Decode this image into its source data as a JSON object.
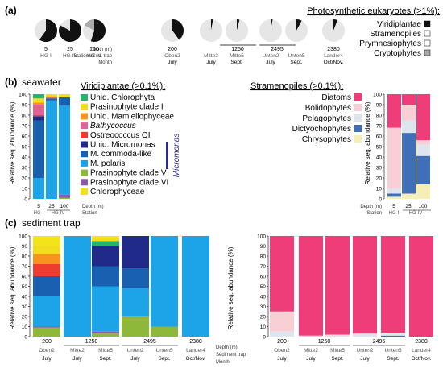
{
  "figure": {
    "panel_a": {
      "label": "(a)",
      "legend_title": "Photosynthetic eukaryotes (>1%):",
      "legend": [
        {
          "name": "Viridiplantae",
          "color": "#111111"
        },
        {
          "name": "Stramenopiles",
          "color": "#ffffff"
        },
        {
          "name": "Prymnesiophytes",
          "color": "#ffffff"
        },
        {
          "name": "Cryptophytes",
          "color": "#aaaaaa"
        }
      ],
      "left_row_labels": [
        "Depth (m)",
        "Stations/Sed. trap",
        "Month"
      ]
    },
    "panel_b": {
      "label": "(b)",
      "sublabel": "seawater",
      "left_legend_title": "Viridiplantae (>0.1%):",
      "left_legend": [
        {
          "name": "Unid. Chlorophyta",
          "color": "#27b36b"
        },
        {
          "name": "Prasinophyte clade I",
          "color": "#f2dc1d"
        },
        {
          "name": "Unid. Mamiellophyceae",
          "color": "#f7941d"
        },
        {
          "name": "Bathycoccus",
          "color": "#e0629b"
        },
        {
          "name": "Ostreococcus OI",
          "color": "#ee3c2e"
        },
        {
          "name": "Unid. Micromonas",
          "color": "#202a88"
        },
        {
          "name": "M. commoda-like",
          "color": "#1a60b0"
        },
        {
          "name": "M. polaris",
          "color": "#1ca3e8"
        },
        {
          "name": "Prasinophyte clade V",
          "color": "#8db83a"
        },
        {
          "name": "Prasinophyte clade VI",
          "color": "#8a5aa8"
        },
        {
          "name": "Chlorophyceae",
          "color": "#f3e41a"
        }
      ],
      "micromonas_label": "Micromonas",
      "right_legend_title": "Stramenopiles (>0.1%):",
      "right_legend": [
        {
          "name": "Diatoms",
          "color": "#ef3d79"
        },
        {
          "name": "Bolidophytes",
          "color": "#f9cfd6"
        },
        {
          "name": "Pelagophytes",
          "color": "#dfe5ee"
        },
        {
          "name": "Dictyochophytes",
          "color": "#3f6fb6"
        },
        {
          "name": "Chrysophytes",
          "color": "#f5efb5"
        }
      ],
      "left_foot": [
        "Depth (m)",
        "Station"
      ],
      "right_foot": [
        "Depth (m)",
        "Station"
      ]
    },
    "panel_c": {
      "label": "(c)",
      "sublabel": "sediment trap",
      "foot": [
        "Depth (m)",
        "Sediment trap",
        "Month"
      ]
    }
  },
  "chart_data": [
    {
      "type": "pie",
      "panel": "a",
      "title": "Photosynthetic eukaryotes (>1%)",
      "categories": [
        "Viridiplantae",
        "Stramenopiles",
        "Prymnesiophytes",
        "Cryptophytes"
      ],
      "pies": [
        {
          "depth": "5",
          "station": "HG-I",
          "month": "",
          "values": [
            60,
            40,
            0,
            0
          ]
        },
        {
          "depth": "25",
          "station": "HG-IV",
          "month": "",
          "values": [
            83,
            17,
            0,
            0
          ]
        },
        {
          "depth": "100",
          "station": "HG-IV",
          "month": "",
          "values": [
            55,
            28,
            0,
            17
          ]
        },
        {
          "depth": "200",
          "station": "Oben2",
          "month": "July",
          "values": [
            40,
            60,
            0,
            0
          ]
        },
        {
          "depth": "1250",
          "station": "Mitte2",
          "month": "July",
          "values": [
            3,
            97,
            0,
            0
          ]
        },
        {
          "depth": "1250",
          "station": "Mitte5",
          "month": "Sept.",
          "values": [
            4,
            96,
            0,
            0
          ]
        },
        {
          "depth": "2495",
          "station": "Unten2",
          "month": "July",
          "values": [
            3,
            97,
            0,
            0
          ]
        },
        {
          "depth": "2495",
          "station": "Unten5",
          "month": "Sept.",
          "values": [
            8,
            92,
            0,
            0
          ]
        },
        {
          "depth": "2380",
          "station": "Lander4",
          "month": "Oct/Nov.",
          "values": [
            6,
            94,
            0,
            0
          ]
        }
      ]
    },
    {
      "type": "bar",
      "stacked": true,
      "panel": "b-left",
      "title": "Viridiplantae (>0.1%)",
      "ylabel": "Relative seq. abundance (%)",
      "ylim": [
        0,
        100
      ],
      "yticks": [
        0,
        10,
        20,
        30,
        40,
        50,
        60,
        70,
        80,
        90,
        100
      ],
      "categories": [
        "5",
        "25",
        "100"
      ],
      "stations": [
        "HG-I",
        "HG-IV",
        "HG-IV"
      ],
      "series": [
        {
          "name": "Prasinophyte clade V",
          "values": [
            0,
            0,
            1
          ]
        },
        {
          "name": "Prasinophyte clade VI",
          "values": [
            0,
            0,
            3
          ]
        },
        {
          "name": "M. polaris",
          "values": [
            20,
            94,
            85
          ]
        },
        {
          "name": "M. commoda-like",
          "values": [
            55,
            2,
            8
          ]
        },
        {
          "name": "Unid. Micromonas",
          "values": [
            4,
            0,
            0
          ]
        },
        {
          "name": "Ostreococcus OI",
          "values": [
            1,
            0,
            0
          ]
        },
        {
          "name": "Bathycoccus",
          "values": [
            10,
            1,
            0
          ]
        },
        {
          "name": "Unid. Mamiellophyceae",
          "values": [
            2,
            1,
            0
          ]
        },
        {
          "name": "Prasinophyte clade I",
          "values": [
            4,
            2,
            3
          ]
        },
        {
          "name": "Unid. Chlorophyta",
          "values": [
            4,
            0,
            0
          ]
        }
      ]
    },
    {
      "type": "bar",
      "stacked": true,
      "panel": "b-right",
      "title": "Stramenopiles (>0.1%)",
      "ylabel": "Relative seq. abundance (%)",
      "ylim": [
        0,
        100
      ],
      "yticks": [
        0,
        10,
        20,
        30,
        40,
        50,
        60,
        70,
        80,
        90,
        100
      ],
      "categories": [
        "5",
        "25",
        "100"
      ],
      "stations": [
        "HG-I",
        "HG-IV",
        "HG-IV"
      ],
      "series": [
        {
          "name": "Chrysophytes",
          "values": [
            2,
            5,
            14
          ]
        },
        {
          "name": "Dictyochophytes",
          "values": [
            3,
            58,
            27
          ]
        },
        {
          "name": "Pelagophytes",
          "values": [
            5,
            12,
            11
          ]
        },
        {
          "name": "Bolidophytes",
          "values": [
            58,
            15,
            4
          ]
        },
        {
          "name": "Diatoms",
          "values": [
            32,
            10,
            44
          ]
        }
      ]
    },
    {
      "type": "bar",
      "stacked": true,
      "panel": "c-left",
      "ylabel": "Relative seq. abundance (%)",
      "ylim": [
        0,
        100
      ],
      "yticks": [
        0,
        10,
        20,
        30,
        40,
        50,
        60,
        70,
        80,
        90,
        100
      ],
      "categories": [
        "Oben2",
        "Mitte2",
        "Mitte5",
        "Unten2",
        "Unten5",
        "Lander4"
      ],
      "depth_labels": [
        {
          "text": "200",
          "span": [
            0,
            0
          ]
        },
        {
          "text": "1250",
          "span": [
            1,
            2
          ]
        },
        {
          "text": "2495",
          "span": [
            3,
            4
          ]
        },
        {
          "text": "2380",
          "span": [
            5,
            5
          ]
        }
      ],
      "months": [
        "July",
        "July",
        "Sept.",
        "July",
        "Sept.",
        "Oct/Nov."
      ],
      "series": [
        {
          "name": "Prasinophyte clade V",
          "values": [
            9,
            0,
            3,
            20,
            10,
            0
          ]
        },
        {
          "name": "Prasinophyte clade VI",
          "values": [
            1,
            0,
            2,
            0,
            0,
            0
          ]
        },
        {
          "name": "M. polaris",
          "values": [
            30,
            100,
            45,
            28,
            90,
            100
          ]
        },
        {
          "name": "M. commoda-like",
          "values": [
            20,
            0,
            20,
            20,
            0,
            0
          ]
        },
        {
          "name": "Unid. Micromonas",
          "values": [
            0,
            0,
            20,
            32,
            0,
            0
          ]
        },
        {
          "name": "Ostreococcus OI",
          "values": [
            12,
            0,
            0,
            0,
            0,
            0
          ]
        },
        {
          "name": "Bathycoccus",
          "values": [
            0,
            0,
            0,
            0,
            0,
            0
          ]
        },
        {
          "name": "Unid. Mamiellophyceae",
          "values": [
            10,
            0,
            0,
            0,
            0,
            0
          ]
        },
        {
          "name": "Unid. Chlorophyta",
          "values": [
            0,
            0,
            5,
            0,
            0,
            0
          ]
        },
        {
          "name": "Prasinophyte clade I",
          "values": [
            8,
            0,
            3,
            0,
            0,
            0
          ]
        },
        {
          "name": "Chlorophyceae",
          "values": [
            10,
            0,
            2,
            0,
            0,
            0
          ]
        }
      ]
    },
    {
      "type": "bar",
      "stacked": true,
      "panel": "c-right",
      "ylabel": "Relative seq. abundance (%)",
      "ylim": [
        0,
        100
      ],
      "yticks": [
        0,
        10,
        20,
        30,
        40,
        50,
        60,
        70,
        80,
        90,
        100
      ],
      "categories": [
        "Oben2",
        "Mitte2",
        "Mitte5",
        "Unten2",
        "Unten5",
        "Lander4"
      ],
      "depth_labels": [
        {
          "text": "200",
          "span": [
            0,
            0
          ]
        },
        {
          "text": "1250",
          "span": [
            1,
            2
          ]
        },
        {
          "text": "2495",
          "span": [
            3,
            4
          ]
        },
        {
          "text": "2380",
          "span": [
            5,
            5
          ]
        }
      ],
      "months": [
        "July",
        "July",
        "Sept.",
        "July",
        "Sept.",
        "Oct/Nov."
      ],
      "series": [
        {
          "name": "Chrysophytes",
          "values": [
            0,
            0,
            0,
            0,
            0,
            0
          ]
        },
        {
          "name": "Dictyochophytes",
          "values": [
            0,
            0,
            0,
            0,
            1,
            0
          ]
        },
        {
          "name": "Pelagophytes",
          "values": [
            5,
            0,
            1,
            3,
            2,
            0
          ]
        },
        {
          "name": "Bolidophytes",
          "values": [
            20,
            1,
            1,
            0,
            1,
            0
          ]
        },
        {
          "name": "Diatoms",
          "values": [
            75,
            99,
            98,
            97,
            96,
            100
          ]
        }
      ]
    }
  ]
}
